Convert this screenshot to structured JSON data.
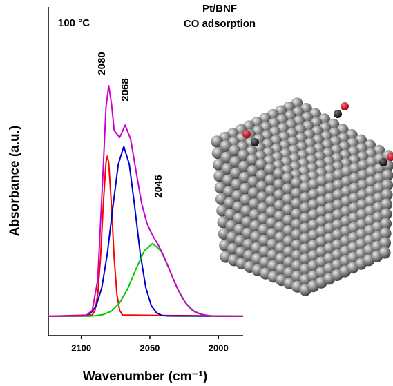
{
  "chart_data": {
    "type": "line",
    "title": "Pt/BNF",
    "subtitle": "CO adsorption",
    "x_label": "Wavenumber (cm⁻¹)",
    "y_label": "Absorbance (a.u.)",
    "annotations": [
      "100 °C",
      "2080",
      "2068",
      "2046"
    ],
    "xlim": [
      2124,
      1982
    ],
    "xticks": [
      2100,
      2050,
      2000
    ],
    "ylim": [
      0,
      1.35
    ],
    "series": [
      {
        "color": "#ff0000",
        "x": [
          2124,
          2092,
          2090,
          2088,
          2086,
          2084,
          2082,
          2081,
          2080,
          2078,
          2076,
          2074,
          2072,
          2070,
          1982
        ],
        "values": [
          0.08,
          0.085,
          0.104,
          0.169,
          0.318,
          0.537,
          0.714,
          0.74,
          0.714,
          0.537,
          0.318,
          0.169,
          0.104,
          0.085,
          0.08
        ]
      },
      {
        "color": "#0000cc",
        "x": [
          2124,
          2101,
          2097,
          2093,
          2089,
          2085,
          2081,
          2077,
          2073,
          2069,
          2065,
          2061,
          2057,
          2053,
          2049,
          2045,
          2041,
          2037,
          1982
        ],
        "values": [
          0.08,
          0.081,
          0.083,
          0.093,
          0.124,
          0.199,
          0.338,
          0.529,
          0.707,
          0.78,
          0.707,
          0.529,
          0.338,
          0.199,
          0.124,
          0.093,
          0.083,
          0.081,
          0.08
        ]
      },
      {
        "color": "#00cc00",
        "x": [
          2124,
          2096,
          2090,
          2084,
          2078,
          2072,
          2066,
          2060,
          2054,
          2048,
          2042,
          2036,
          2030,
          2024,
          2018,
          2012,
          2006,
          2000,
          1982
        ],
        "values": [
          0.08,
          0.08,
          0.082,
          0.087,
          0.101,
          0.135,
          0.195,
          0.276,
          0.35,
          0.38,
          0.35,
          0.276,
          0.195,
          0.135,
          0.101,
          0.087,
          0.082,
          0.08,
          0.08
        ]
      },
      {
        "color": "#cc00cc",
        "x": [
          2124,
          2100,
          2096,
          2092,
          2088,
          2084,
          2082,
          2080,
          2078,
          2076,
          2072,
          2068,
          2064,
          2060,
          2056,
          2052,
          2048,
          2044,
          2040,
          2036,
          2032,
          2028,
          2024,
          2020,
          2016,
          2012,
          2008,
          2004,
          2000,
          1982
        ],
        "values": [
          0.08,
          0.081,
          0.085,
          0.104,
          0.229,
          0.692,
          0.941,
          1.031,
          0.958,
          0.846,
          0.817,
          0.868,
          0.81,
          0.676,
          0.545,
          0.461,
          0.413,
          0.375,
          0.33,
          0.276,
          0.221,
          0.172,
          0.135,
          0.109,
          0.094,
          0.087,
          0.083,
          0.081,
          0.08,
          0.08
        ]
      }
    ]
  }
}
